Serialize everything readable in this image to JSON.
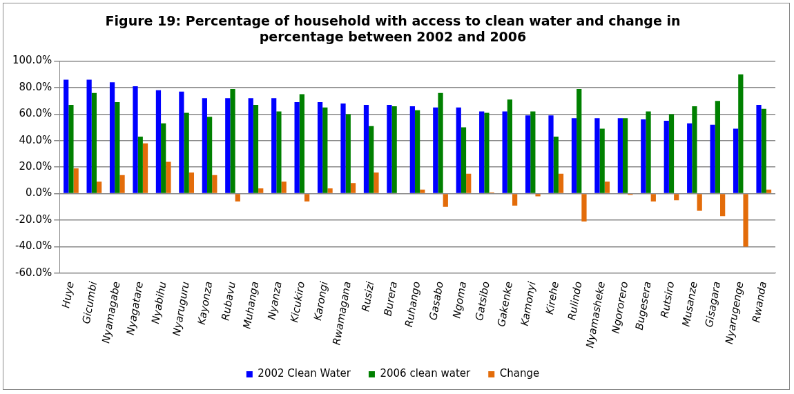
{
  "chart_data": {
    "type": "bar",
    "title": [
      "Figure 19: Percentage of household with access to clean water and change in",
      "percentage between 2002 and 2006"
    ],
    "categories": [
      "Huye",
      "Gicumbi",
      "Nyamagabe",
      "Nyagatare",
      "Nyabihu",
      "Nyaruguru",
      "Kayonza",
      "Rubavu",
      "Muhanga",
      "Nyanza",
      "Kicukiro",
      "Karongi",
      "Rwamagana",
      "Rusizi",
      "Burera",
      "Ruhango",
      "Gasabo",
      "Ngoma",
      "Gatsibo",
      "Gakenke",
      "Kamonyi",
      "Kirehe",
      "Rulindo",
      "Nyamasheke",
      "Ngororero",
      "Bugesera",
      "Rutsiro",
      "Musanze",
      "Gisagara",
      "Nyarugenge",
      "Rwanda"
    ],
    "series": [
      {
        "name": "2002 Clean Water",
        "color": "#0000ff",
        "values": [
          86,
          86,
          84,
          81,
          78,
          77,
          72,
          72,
          72,
          72,
          69,
          69,
          68,
          67,
          67,
          66,
          65,
          65,
          62,
          62,
          59,
          59,
          57,
          57,
          57,
          56,
          55,
          53,
          52,
          49,
          67
        ]
      },
      {
        "name": "2006 clean water",
        "color": "#008000",
        "values": [
          67,
          76,
          69,
          43,
          53,
          61,
          58,
          79,
          67,
          62,
          75,
          65,
          60,
          51,
          66,
          63,
          76,
          50,
          61,
          71,
          62,
          43,
          79,
          49,
          57,
          62,
          60,
          66,
          70,
          90,
          64
        ]
      },
      {
        "name": "Change",
        "color": "#e36c0a",
        "values": [
          19,
          9,
          14,
          38,
          24,
          16,
          14,
          -6,
          4,
          9,
          -6,
          4,
          8,
          16,
          0,
          3,
          -10,
          15,
          1,
          -9,
          -2,
          15,
          -21,
          9,
          -1,
          -6,
          -5,
          -13,
          -17,
          -40,
          3
        ]
      }
    ],
    "ylim": [
      -60,
      100
    ],
    "yticks": [
      {
        "value": -60,
        "label": "-60.0%"
      },
      {
        "value": -40,
        "label": "-40.0%"
      },
      {
        "value": -20,
        "label": "-20.0%"
      },
      {
        "value": 0,
        "label": "0.0%"
      },
      {
        "value": 20,
        "label": "20.0%"
      },
      {
        "value": 40,
        "label": "40.0%"
      },
      {
        "value": 60,
        "label": "60.0%"
      },
      {
        "value": 80,
        "label": "80.0%"
      },
      {
        "value": 100,
        "label": "100.0%"
      }
    ],
    "grid": "y",
    "legend": "bottom"
  }
}
